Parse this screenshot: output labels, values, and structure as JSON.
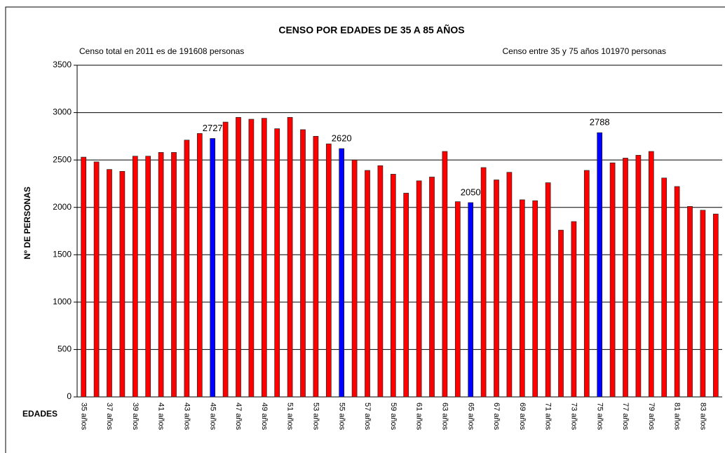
{
  "chart_data": {
    "type": "bar",
    "title": "CENSO POR EDADES DE 35 A 85 AÑOS",
    "annotations": [
      "Censo total en 2011 es de 191608 personas",
      "Censo entre 35 y 75 años 101970 personas"
    ],
    "x_label": "EDADES",
    "y_label": "Nº DE PERSONAS",
    "categories": [
      "35 años",
      null,
      "37 años",
      null,
      "39 años",
      null,
      "41 años",
      null,
      "43 años",
      null,
      "45 años",
      null,
      "47 años",
      null,
      "49 años",
      null,
      "51 años",
      null,
      "53 años",
      null,
      "55 años",
      null,
      "57 años",
      null,
      "59 años",
      null,
      "61 años",
      null,
      "63 años",
      null,
      "65 años",
      null,
      "67 años",
      null,
      "69 años",
      null,
      "71 años",
      null,
      "73 años",
      null,
      "75 años",
      null,
      "77 años",
      null,
      "79 años",
      null,
      "81 años",
      null,
      "83 años",
      null
    ],
    "values": [
      2530,
      2480,
      2400,
      2380,
      2540,
      2540,
      2580,
      2580,
      2710,
      2780,
      2727,
      2900,
      2950,
      2930,
      2940,
      2830,
      2950,
      2820,
      2750,
      2670,
      2620,
      2500,
      2390,
      2440,
      2350,
      2150,
      2280,
      2320,
      2590,
      2060,
      2050,
      2420,
      2290,
      2370,
      2080,
      2070,
      2260,
      1760,
      1850,
      2390,
      2788,
      2470,
      2520,
      2550,
      2590,
      2310,
      2220,
      2010,
      1970,
      1930
    ],
    "color": "#ff0000",
    "colors": [
      "#ff0000",
      "#ff0000",
      "#ff0000",
      "#ff0000",
      "#ff0000",
      "#ff0000",
      "#ff0000",
      "#ff0000",
      "#ff0000",
      "#ff0000",
      "#0000ff",
      "#ff0000",
      "#ff0000",
      "#ff0000",
      "#ff0000",
      "#ff0000",
      "#ff0000",
      "#ff0000",
      "#ff0000",
      "#ff0000",
      "#0000ff",
      "#ff0000",
      "#ff0000",
      "#ff0000",
      "#ff0000",
      "#ff0000",
      "#ff0000",
      "#ff0000",
      "#ff0000",
      "#ff0000",
      "#0000ff",
      "#ff0000",
      "#ff0000",
      "#ff0000",
      "#ff0000",
      "#ff0000",
      "#ff0000",
      "#ff0000",
      "#ff0000",
      "#ff0000",
      "#0000ff",
      "#ff0000",
      "#ff0000",
      "#ff0000",
      "#ff0000",
      "#ff0000",
      "#ff0000",
      "#ff0000",
      "#ff0000",
      "#ff0000"
    ],
    "ylim": [
      0,
      3500
    ],
    "yticks": [
      0,
      500,
      1000,
      1500,
      2000,
      2500,
      3000,
      3500
    ],
    "grid": true
  }
}
